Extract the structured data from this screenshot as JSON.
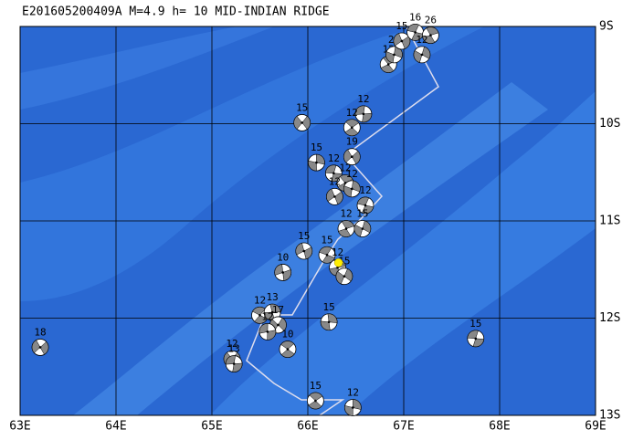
{
  "title": "E201605200409A  M=4.9  h= 10  MID-INDIAN RIDGE",
  "xticks": [
    {
      "value": 63,
      "label": "63E"
    },
    {
      "value": 64,
      "label": "64E"
    },
    {
      "value": 65,
      "label": "65E"
    },
    {
      "value": 66,
      "label": "66E"
    },
    {
      "value": 67,
      "label": "67E"
    },
    {
      "value": 68,
      "label": "68E"
    },
    {
      "value": 69,
      "label": "69E"
    }
  ],
  "yticks": [
    {
      "value": -9,
      "label": "9S"
    },
    {
      "value": -10,
      "label": "10S"
    },
    {
      "value": -11,
      "label": "11S"
    },
    {
      "value": -12,
      "label": "12S"
    },
    {
      "value": -13,
      "label": "13S"
    }
  ],
  "epicenter": {
    "lon": 66.32,
    "lat": -11.43
  },
  "events": [
    {
      "lon": 65.94,
      "lat": -9.99,
      "depth": 15
    },
    {
      "lon": 66.58,
      "lat": -9.9,
      "depth": 12
    },
    {
      "lon": 66.46,
      "lat": -10.04,
      "depth": 12
    },
    {
      "lon": 66.09,
      "lat": -10.4,
      "depth": 15
    },
    {
      "lon": 66.46,
      "lat": -10.34,
      "depth": 19
    },
    {
      "lon": 66.27,
      "lat": -10.51,
      "depth": 12
    },
    {
      "lon": 66.39,
      "lat": -10.61,
      "depth": 12
    },
    {
      "lon": 66.46,
      "lat": -10.67,
      "depth": 12
    },
    {
      "lon": 66.28,
      "lat": -10.75,
      "depth": 12
    },
    {
      "lon": 66.6,
      "lat": -10.84,
      "depth": 12
    },
    {
      "lon": 66.4,
      "lat": -11.08,
      "depth": 12
    },
    {
      "lon": 66.57,
      "lat": -11.08,
      "depth": 15
    },
    {
      "lon": 65.96,
      "lat": -11.31,
      "depth": 15
    },
    {
      "lon": 66.2,
      "lat": -11.35,
      "depth": 15
    },
    {
      "lon": 66.31,
      "lat": -11.48,
      "depth": 12
    },
    {
      "lon": 66.38,
      "lat": -11.57,
      "depth": 15
    },
    {
      "lon": 65.74,
      "lat": -11.53,
      "depth": 10
    },
    {
      "lon": 65.5,
      "lat": -11.97,
      "depth": 12
    },
    {
      "lon": 65.63,
      "lat": -11.94,
      "depth": 13
    },
    {
      "lon": 65.69,
      "lat": -12.07,
      "depth": 17
    },
    {
      "lon": 65.58,
      "lat": -12.14,
      "depth": 12
    },
    {
      "lon": 65.79,
      "lat": -12.32,
      "depth": 10
    },
    {
      "lon": 66.22,
      "lat": -12.04,
      "depth": 15
    },
    {
      "lon": 65.21,
      "lat": -12.42,
      "depth": 12
    },
    {
      "lon": 65.23,
      "lat": -12.47,
      "depth": 13
    },
    {
      "lon": 66.08,
      "lat": -12.85,
      "depth": 15
    },
    {
      "lon": 66.47,
      "lat": -12.92,
      "depth": 12
    },
    {
      "lon": 63.21,
      "lat": -12.3,
      "depth": 18
    },
    {
      "lon": 67.75,
      "lat": -12.21,
      "depth": 15
    },
    {
      "lon": 66.84,
      "lat": -9.39,
      "depth": 12
    },
    {
      "lon": 66.9,
      "lat": -9.29,
      "depth": 20
    },
    {
      "lon": 66.98,
      "lat": -9.15,
      "depth": 15
    },
    {
      "lon": 67.12,
      "lat": -9.06,
      "depth": 16
    },
    {
      "lon": 67.28,
      "lat": -9.09,
      "depth": 26
    },
    {
      "lon": 67.19,
      "lat": -9.29,
      "depth": 12
    }
  ]
}
